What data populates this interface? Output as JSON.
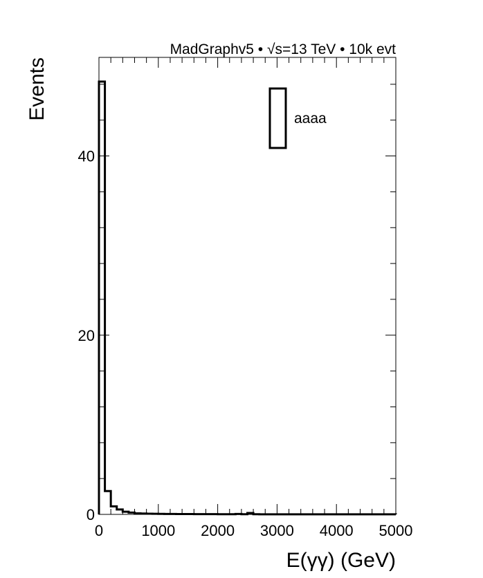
{
  "header": {
    "text": "MadGraphv5 • √s=13 TeV • 10k evt"
  },
  "chart_data": {
    "type": "histogram",
    "xlabel": "E(γγ) (GeV)",
    "ylabel": "Events",
    "xlim": [
      0,
      5000
    ],
    "ylim": [
      0,
      51
    ],
    "grid": false,
    "x_ticks": [
      0,
      1000,
      2000,
      3000,
      4000,
      5000
    ],
    "x_tick_labels": [
      "0",
      "1000",
      "2000",
      "3000",
      "4000",
      "5000"
    ],
    "y_ticks": [
      0,
      20,
      40
    ],
    "y_tick_labels": [
      "0",
      "20",
      "40"
    ],
    "bin_width": 100,
    "bin_edges_start": 0,
    "values": [
      48.3,
      2.6,
      0.9,
      0.55,
      0.3,
      0.2,
      0.12,
      0.1,
      0.08,
      0.07,
      0.06,
      0.05,
      0.05,
      0.04,
      0.04,
      0.04,
      0.03,
      0.03,
      0.03,
      0.03,
      0.02,
      0.02,
      0.02,
      0.05,
      0.02,
      0.15,
      0.02,
      0.01,
      0.01,
      0.01,
      0.01,
      0.01,
      0.01,
      0.01,
      0.01,
      0.01,
      0.01,
      0.01,
      0.01,
      0.01,
      0.01,
      0.01,
      0.01,
      0.01,
      0.01,
      0.01,
      0.01,
      0.01,
      0.01,
      0.01
    ],
    "legend": {
      "position": "top-right",
      "entries": [
        {
          "name": "aaaa",
          "color": "#000000"
        }
      ]
    },
    "line_color": "#000000"
  }
}
